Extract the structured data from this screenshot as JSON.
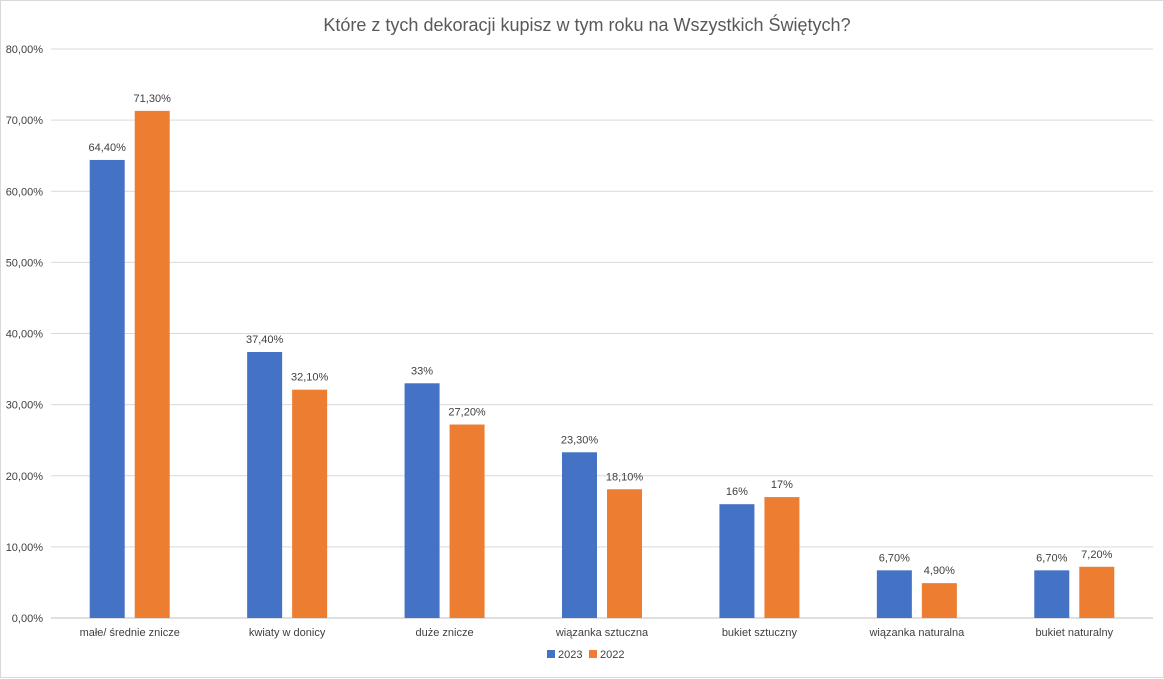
{
  "chart_data": {
    "type": "bar",
    "title": "Które z tych dekoracji kupisz w tym roku na Wszystkich Świętych?",
    "xlabel": "",
    "ylabel": "",
    "categories": [
      "małe/ średnie znicze",
      "kwiaty w donicy",
      "duże znicze",
      "wiązanka sztuczna",
      "bukiet sztuczny",
      "wiązanka naturalna",
      "bukiet naturalny"
    ],
    "series": [
      {
        "name": "2023",
        "color": "#4472C4",
        "values": [
          64.4,
          37.4,
          33,
          23.3,
          16,
          6.7,
          6.7
        ],
        "labels": [
          "64,40%",
          "37,40%",
          "33%",
          "23,30%",
          "16%",
          "6,70%",
          "6,70%"
        ]
      },
      {
        "name": "2022",
        "color": "#ED7D31",
        "values": [
          71.3,
          32.1,
          27.2,
          18.1,
          17,
          4.9,
          7.2
        ],
        "labels": [
          "71,30%",
          "32,10%",
          "27,20%",
          "18,10%",
          "17%",
          "4,90%",
          "7,20%"
        ]
      }
    ],
    "ylim": [
      0,
      80
    ],
    "yticks": [
      0,
      10,
      20,
      30,
      40,
      50,
      60,
      70,
      80
    ],
    "ytick_labels": [
      "0,00%",
      "10,00%",
      "20,00%",
      "30,00%",
      "40,00%",
      "50,00%",
      "60,00%",
      "70,00%",
      "80,00%"
    ],
    "grid": true,
    "legend_position": "bottom"
  }
}
